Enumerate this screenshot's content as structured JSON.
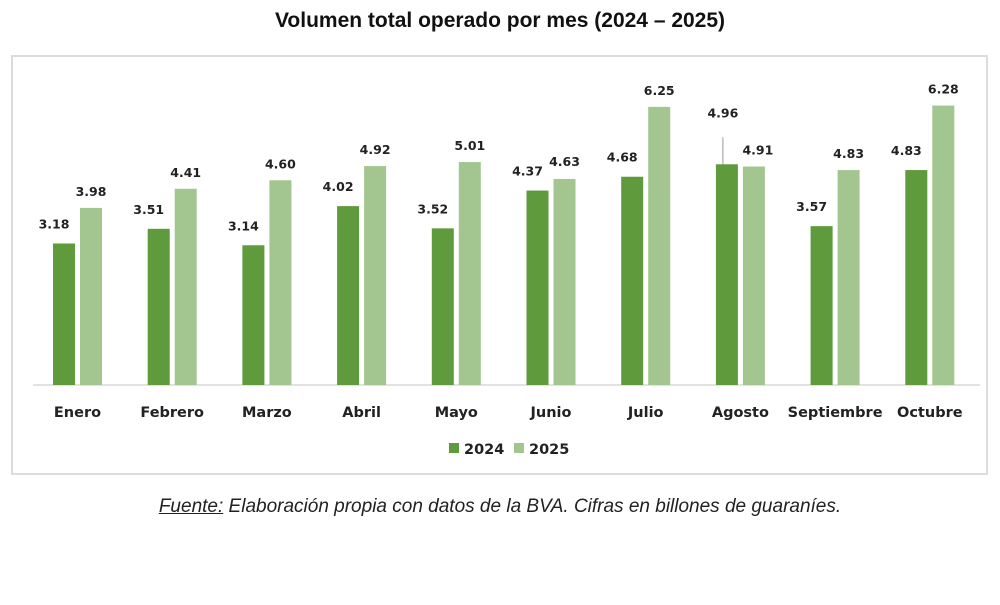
{
  "chart_data": {
    "type": "bar",
    "title": "Volumen total operado por mes (2024 – 2025)",
    "xlabel": "",
    "ylabel": "",
    "ylim": [
      0,
      6.28
    ],
    "grid": false,
    "legend_position": "bottom",
    "categories": [
      "Enero",
      "Febrero",
      "Marzo",
      "Abril",
      "Mayo",
      "Junio",
      "Julio",
      "Agosto",
      "Septiembre",
      "Octubre"
    ],
    "series": [
      {
        "name": "2024",
        "color": "#5f9a3c",
        "values": [
          3.18,
          3.51,
          3.14,
          4.02,
          3.52,
          4.37,
          4.68,
          4.96,
          3.57,
          4.83
        ]
      },
      {
        "name": "2025",
        "color": "#a3c690",
        "values": [
          3.98,
          4.41,
          4.6,
          4.92,
          5.01,
          4.63,
          6.25,
          4.91,
          4.83,
          6.28
        ]
      }
    ],
    "value_labels": {
      "2024": [
        "3.18",
        "3.51",
        "3.14",
        "4.02",
        "3.52",
        "4.37",
        "4.68",
        "4.96",
        "3.57",
        "4.83"
      ],
      "2025": [
        "3.98",
        "4.41",
        "4.60",
        "4.92",
        "5.01",
        "4.63",
        "6.25",
        "4.91",
        "4.83",
        "6.28"
      ]
    }
  },
  "source": {
    "label": "Fuente:",
    "text": " Elaboración propia con datos de la BVA. Cifras en billones de guaraníes."
  }
}
